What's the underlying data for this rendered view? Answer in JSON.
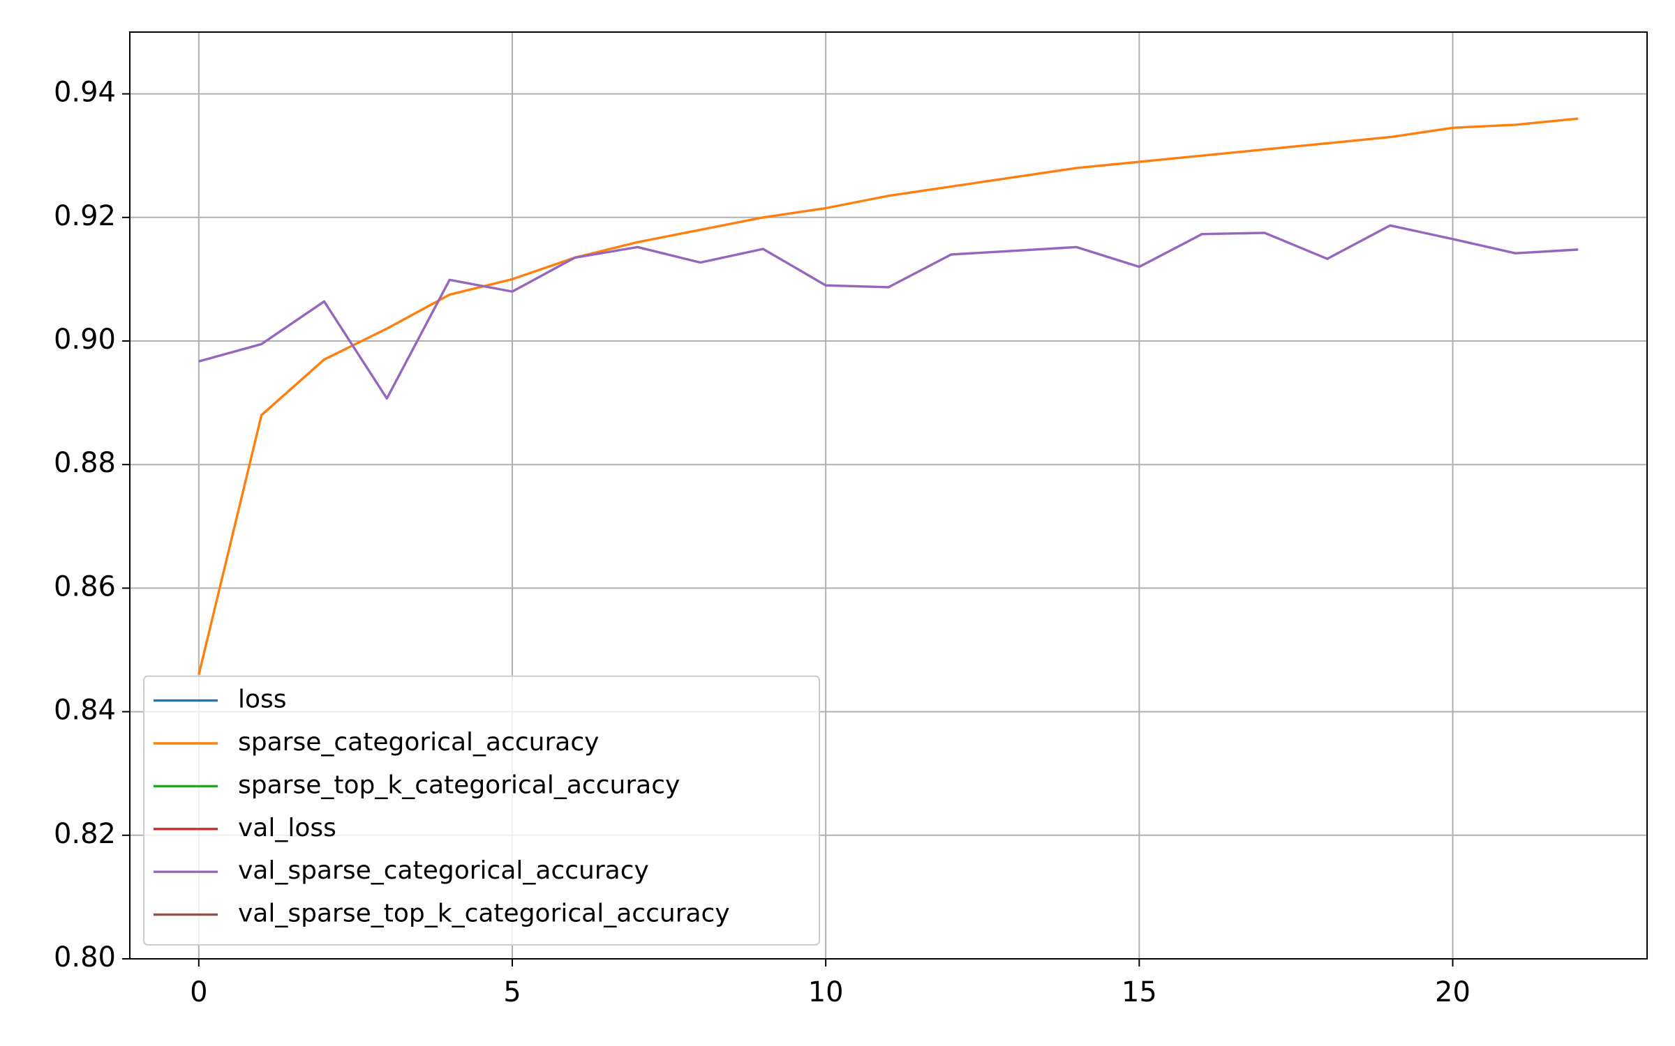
{
  "chart_data": {
    "type": "line",
    "x": [
      0,
      1,
      2,
      3,
      4,
      5,
      6,
      7,
      8,
      9,
      10,
      11,
      12,
      13,
      14,
      15,
      16,
      17,
      18,
      19,
      20,
      21,
      22
    ],
    "series": [
      {
        "name": "loss",
        "color": "#1f77b4",
        "values": [
          null,
          null,
          null,
          null,
          null,
          null,
          null,
          null,
          null,
          null,
          null,
          null,
          null,
          null,
          null,
          null,
          null,
          null,
          null,
          null,
          null,
          null,
          null
        ]
      },
      {
        "name": "sparse_categorical_accuracy",
        "color": "#ff7f0e",
        "values": [
          0.846,
          0.888,
          0.897,
          0.902,
          0.9075,
          0.91,
          0.9135,
          0.916,
          0.918,
          0.92,
          0.9215,
          0.9235,
          0.925,
          0.9265,
          0.928,
          0.929,
          0.93,
          0.931,
          0.932,
          0.933,
          0.9345,
          0.935,
          0.936
        ]
      },
      {
        "name": "sparse_top_k_categorical_accuracy",
        "color": "#2ca02c",
        "values": [
          null,
          null,
          null,
          null,
          null,
          null,
          null,
          null,
          null,
          null,
          null,
          null,
          null,
          null,
          null,
          null,
          null,
          null,
          null,
          null,
          null,
          null,
          null
        ]
      },
      {
        "name": "val_loss",
        "color": "#d62728",
        "values": [
          null,
          null,
          null,
          null,
          null,
          null,
          null,
          null,
          null,
          null,
          null,
          null,
          null,
          null,
          null,
          null,
          null,
          null,
          null,
          null,
          null,
          null,
          null
        ]
      },
      {
        "name": "val_sparse_categorical_accuracy",
        "color": "#9467bd",
        "values": [
          0.8967,
          0.8995,
          0.9064,
          0.8907,
          0.9099,
          0.908,
          0.9135,
          0.9152,
          0.9127,
          0.9149,
          0.909,
          0.9087,
          0.914,
          0.9146,
          0.9152,
          0.912,
          0.9173,
          0.9175,
          0.9133,
          0.9187,
          0.9165,
          0.9142,
          0.9148
        ]
      },
      {
        "name": "val_sparse_top_k_categorical_accuracy",
        "color": "#8c564b",
        "values": [
          null,
          null,
          null,
          null,
          null,
          null,
          null,
          null,
          null,
          null,
          null,
          null,
          null,
          null,
          null,
          null,
          null,
          null,
          null,
          null,
          null,
          null,
          null
        ]
      }
    ],
    "xlim": [
      -1.1,
      23.1
    ],
    "xticks": [
      0,
      5,
      10,
      15,
      20
    ],
    "ylim": [
      0.8,
      0.95
    ],
    "yticks": [
      {
        "value": 0.8,
        "label": "0.80"
      },
      0.82,
      0.84,
      0.86,
      0.88,
      {
        "value": 0.9,
        "label": "0.90"
      },
      0.92,
      0.94
    ],
    "grid": true,
    "legend": "lower left"
  }
}
